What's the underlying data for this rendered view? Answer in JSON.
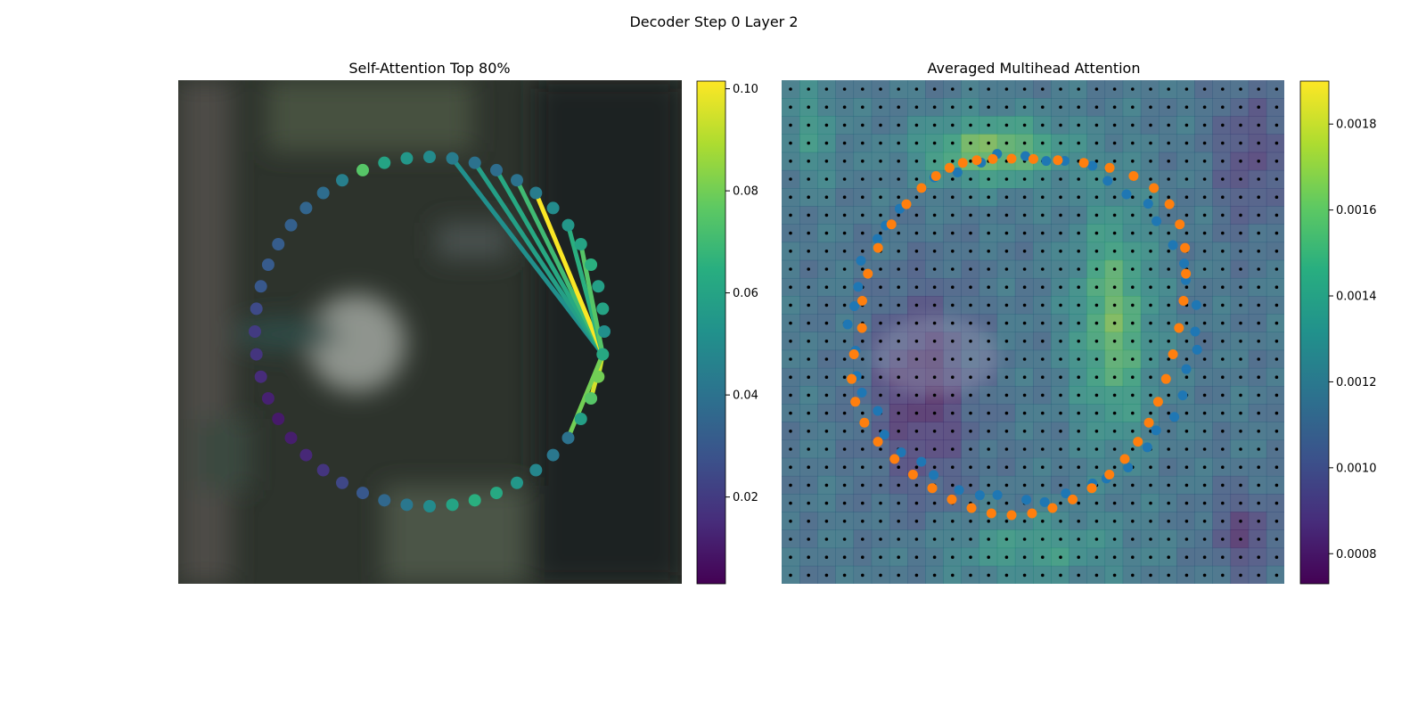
{
  "figure": {
    "suptitle": "Decoder Step 0 Layer 2"
  },
  "chart_data": [
    {
      "type": "scatter",
      "title": "Self-Attention Top 80%",
      "xlabel": "",
      "ylabel": "",
      "axes_visible": false,
      "background": "blurred image (grayscale-green)",
      "colormap": "viridis",
      "colorbar": {
        "min": 0.003,
        "max": 0.1015,
        "ticks": [
          "0.02",
          "0.04",
          "0.06",
          "0.08",
          "0.10"
        ],
        "tick_values": [
          0.02,
          0.04,
          0.06,
          0.08,
          0.1
        ]
      },
      "points_polar": {
        "note_units": "circle of 48 query points; angle in degrees (0 = right, counter-clockwise), value = attention",
        "values": [
          0.052,
          0.06,
          0.058,
          0.065,
          0.06,
          0.055,
          0.05,
          0.044,
          0.04,
          0.038,
          0.04,
          0.044,
          0.05,
          0.055,
          0.06,
          0.075,
          0.045,
          0.038,
          0.035,
          0.033,
          0.032,
          0.031,
          0.03,
          0.025,
          0.02,
          0.018,
          0.015,
          0.012,
          0.01,
          0.011,
          0.014,
          0.018,
          0.024,
          0.03,
          0.036,
          0.042,
          0.05,
          0.06,
          0.065,
          0.062,
          0.055,
          0.048,
          0.042,
          0.04,
          0.058,
          0.075,
          0.08,
          0.062
        ]
      },
      "attention_links": [
        {
          "target": 47,
          "source": 11,
          "weight": 0.052
        },
        {
          "target": 47,
          "source": 10,
          "weight": 0.058
        },
        {
          "target": 47,
          "source": 9,
          "weight": 0.062
        },
        {
          "target": 47,
          "source": 8,
          "weight": 0.07
        },
        {
          "target": 47,
          "source": 7,
          "weight": 0.101
        },
        {
          "target": 47,
          "source": 5,
          "weight": 0.065
        },
        {
          "target": 47,
          "source": 4,
          "weight": 0.075
        },
        {
          "target": 47,
          "source": 46,
          "weight": 0.09
        },
        {
          "target": 47,
          "source": 45,
          "weight": 0.095
        },
        {
          "target": 47,
          "source": 43,
          "weight": 0.08
        }
      ]
    },
    {
      "type": "heatmap",
      "title": "Averaged Multihead Attention",
      "xlabel": "",
      "ylabel": "",
      "axes_visible": false,
      "grid": {
        "rows": 28,
        "cols": 28
      },
      "colormap": "viridis",
      "colorbar": {
        "min": 0.00073,
        "max": 0.0019,
        "ticks": [
          "0.0008",
          "0.0010",
          "0.0012",
          "0.0014",
          "0.0016",
          "0.0018"
        ],
        "tick_values": [
          0.0008,
          0.001,
          0.0012,
          0.0014,
          0.0016,
          0.0018
        ]
      },
      "overlay_series": [
        {
          "marker": "black dots",
          "color": "#000000",
          "description": "reference grid points"
        },
        {
          "marker": "blue circles",
          "color": "#1f77b4",
          "description": "current contour points"
        },
        {
          "marker": "orange circles",
          "color": "#ff7f0e",
          "description": "sampled offset points"
        }
      ]
    }
  ]
}
